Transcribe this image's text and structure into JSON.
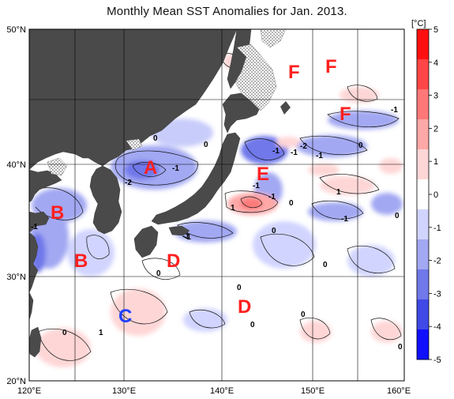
{
  "title": "Monthly Mean SST Anomalies for Jan. 2013.",
  "map": {
    "lat_labels": [
      "50°N",
      "40°N",
      "30°N",
      "20°N"
    ],
    "lon_labels": [
      "120°E",
      "130°E",
      "140°E",
      "150°E",
      "160°E"
    ],
    "regions": [
      {
        "label": "A",
        "color": "#ff2020"
      },
      {
        "label": "B",
        "color": "#ff2020"
      },
      {
        "label": "B",
        "color": "#ff2020"
      },
      {
        "label": "C",
        "color": "#2040ff"
      },
      {
        "label": "D",
        "color": "#ff2020"
      },
      {
        "label": "D",
        "color": "#ff2020"
      },
      {
        "label": "E",
        "color": "#ff2020"
      },
      {
        "label": "F",
        "color": "#ff2020"
      },
      {
        "label": "F",
        "color": "#ff2020"
      },
      {
        "label": "F",
        "color": "#ff2020"
      }
    ],
    "contour_labels": [
      "0",
      "-1",
      "-2",
      "-1",
      "0",
      "-1",
      "-1",
      "-1",
      "-2",
      "-1",
      "-1",
      "0",
      "1",
      "-1",
      "0",
      "1",
      "-1",
      "0",
      "-1",
      "0",
      "0",
      "0",
      "0",
      "0",
      "1",
      "0",
      "-1",
      "0",
      "0"
    ]
  },
  "colorbar": {
    "unit": "[°C]",
    "ticks": [
      "5",
      "4",
      "3",
      "2",
      "1",
      "0",
      "-1",
      "-2",
      "-3",
      "-4",
      "-5"
    ],
    "colors": [
      "#ff1010",
      "#ff4646",
      "#ff7878",
      "#ffa8a8",
      "#ffd6d6",
      "#ffffff",
      "#d0d4ff",
      "#a2a8f2",
      "#7078ea",
      "#4048e6",
      "#1010ff"
    ],
    "range": [
      -5,
      5
    ]
  }
}
